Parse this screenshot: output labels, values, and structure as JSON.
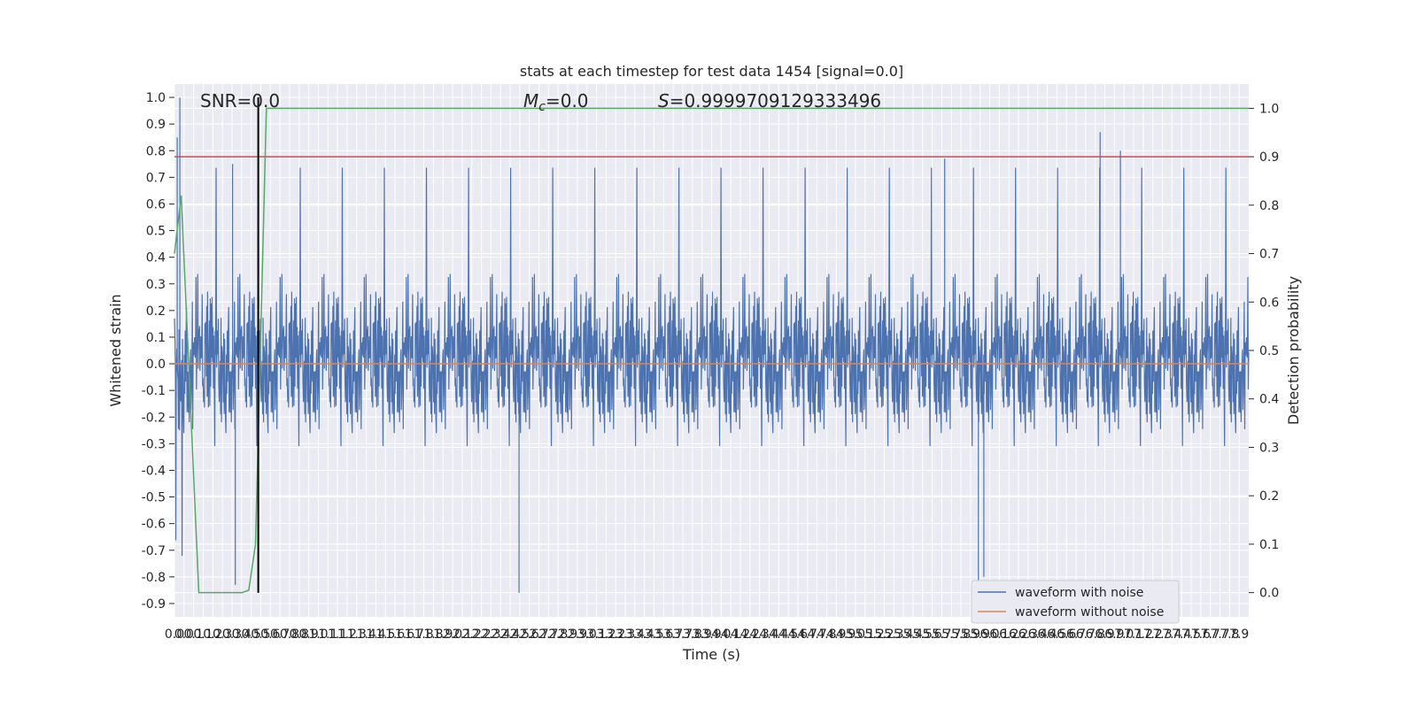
{
  "chart_data": {
    "type": "line",
    "title": "stats at each timestep for test data 1454 [signal=0.0]",
    "xlabel": "Time (s)",
    "ylabel": "Whitened strain",
    "y2label": "Detection probability",
    "xlim": [
      0.0,
      7.95
    ],
    "ylim": [
      -0.95,
      1.05
    ],
    "y2lim": [
      -0.05,
      1.05
    ],
    "x_ticks": [
      "0.0",
      "0.0",
      "0.1",
      "0.1",
      "0.2",
      "0.3",
      "0.3",
      "0.4",
      "0.5",
      "0.5",
      "0.6",
      "0.7",
      "0.8",
      "0.8",
      "0.9",
      "1.0",
      "1.1",
      "1.1",
      "1.2",
      "1.3",
      "1.4",
      "1.4",
      "1.5",
      "1.6",
      "1.6",
      "1.7",
      "1.8",
      "1.8",
      "1.9",
      "2.0",
      "2.1",
      "2.2",
      "2.2",
      "2.3",
      "2.4",
      "2.4",
      "2.5",
      "2.6",
      "2.7",
      "2.7",
      "2.8",
      "2.9",
      "2.9",
      "3.0",
      "3.1",
      "3.2",
      "3.2",
      "3.3",
      "3.4",
      "3.4",
      "3.5",
      "3.6",
      "3.7",
      "3.7",
      "3.8",
      "3.9",
      "3.9",
      "4.0",
      "4.1",
      "4.2",
      "4.2",
      "4.3",
      "4.4",
      "4.4",
      "4.5",
      "4.6",
      "4.7",
      "4.7",
      "4.8",
      "4.9",
      "4.9",
      "5.0",
      "5.1",
      "5.2",
      "5.2",
      "5.3",
      "5.4",
      "5.4",
      "5.5",
      "5.6",
      "5.7",
      "5.7",
      "5.8",
      "5.9",
      "5.9",
      "6.0",
      "6.1",
      "6.2",
      "6.2",
      "6.3",
      "6.4",
      "6.4",
      "6.5",
      "6.6",
      "6.7",
      "6.7",
      "6.8",
      "6.9",
      "6.9",
      "7.0",
      "7.1",
      "7.2",
      "7.2",
      "7.3",
      "7.4",
      "7.4",
      "7.5",
      "7.6",
      "7.7",
      "7.7",
      "7.8",
      "7.9"
    ],
    "y_ticks": [
      "1.0",
      "0.9",
      "0.8",
      "0.7",
      "0.6",
      "0.5",
      "0.4",
      "0.3",
      "0.2",
      "0.1",
      "0.0",
      "-0.1",
      "-0.2",
      "-0.3",
      "-0.4",
      "-0.5",
      "-0.6",
      "-0.7",
      "-0.8",
      "-0.9"
    ],
    "y_tick_values": [
      1.0,
      0.9,
      0.8,
      0.7,
      0.6,
      0.5,
      0.4,
      0.3,
      0.2,
      0.1,
      0.0,
      -0.1,
      -0.2,
      -0.3,
      -0.4,
      -0.5,
      -0.6,
      -0.7,
      -0.8,
      -0.9
    ],
    "y2_ticks": [
      "1.0",
      "0.9",
      "0.8",
      "0.7",
      "0.6",
      "0.5",
      "0.4",
      "0.3",
      "0.2",
      "0.1",
      "0.0"
    ],
    "y2_tick_values": [
      1.0,
      0.9,
      0.8,
      0.7,
      0.6,
      0.5,
      0.4,
      0.3,
      0.2,
      0.1,
      0.0
    ],
    "annotations": {
      "snr": "SNR=0.0",
      "mc_symbol": "M",
      "mc_sub": "c",
      "mc_value": "=0.0",
      "s_symbol": "S",
      "s_value": "=0.9999709129333496"
    },
    "series": [
      {
        "name": "waveform with noise",
        "color": "#4c72b0",
        "axis": "left",
        "style": "dense noise, envelope approx ±0.35, peaks to 1.0 and -0.86"
      },
      {
        "name": "waveform without noise",
        "color": "#dd8452",
        "axis": "left",
        "constant": 0.0
      },
      {
        "name": "",
        "color": "#55a868",
        "axis": "right",
        "x": [
          0.0,
          0.05,
          0.18,
          0.25,
          0.5,
          0.55,
          0.6,
          0.68,
          7.95
        ],
        "y": [
          0.7,
          0.82,
          0.0,
          0.0,
          0.0,
          0.005,
          0.1,
          1.0,
          1.0
        ]
      },
      {
        "name": "",
        "color": "#c44e52",
        "axis": "right",
        "constant": 0.9
      }
    ],
    "vline": {
      "x": 0.62,
      "ymin": -0.86,
      "ymax": 1.0,
      "color": "#000000"
    },
    "legend": {
      "location": "lower-right",
      "entries": [
        "waveform with noise",
        "waveform without noise"
      ]
    },
    "grid": true,
    "colors": {
      "background": "#eaeaf2",
      "grid": "#ffffff",
      "noise": "#4c72b0",
      "clean": "#dd8452",
      "prob": "#55a868",
      "threshold": "#c44e52"
    }
  }
}
